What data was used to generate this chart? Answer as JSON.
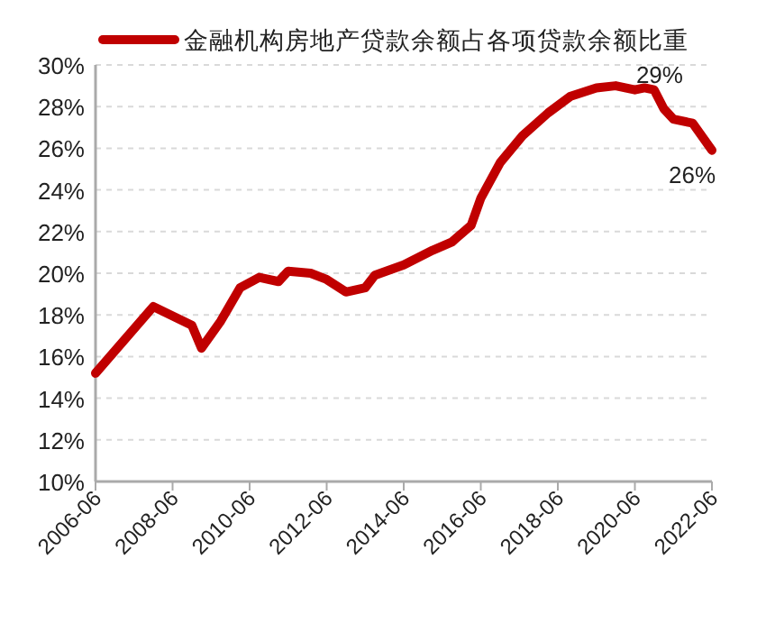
{
  "chart_data": {
    "type": "line",
    "series": [
      {
        "name": "金融机构房地产贷款余额占各项贷款余额比重",
        "color": "#c00000",
        "x": [
          "2006-06",
          "2007-12",
          "2008-12",
          "2009-03",
          "2009-09",
          "2010-03",
          "2010-09",
          "2011-03",
          "2011-06",
          "2012-01",
          "2012-06",
          "2012-12",
          "2013-06",
          "2013-09",
          "2014-06",
          "2015-03",
          "2015-09",
          "2016-03",
          "2016-06",
          "2016-12",
          "2017-07",
          "2018-03",
          "2018-10",
          "2019-06",
          "2019-12",
          "2020-06",
          "2020-09",
          "2020-12",
          "2021-03",
          "2021-06",
          "2021-12",
          "2022-06"
        ],
        "values": [
          15.2,
          18.4,
          17.5,
          16.4,
          17.7,
          19.3,
          19.8,
          19.6,
          20.1,
          20.0,
          19.7,
          19.1,
          19.3,
          19.9,
          20.4,
          21.1,
          21.5,
          22.3,
          23.6,
          25.3,
          26.6,
          27.7,
          28.5,
          28.9,
          29.0,
          28.8,
          28.9,
          28.8,
          27.9,
          27.4,
          27.2,
          25.9
        ]
      }
    ],
    "xlim": [
      "2006-06",
      "2022-06"
    ],
    "xticks": [
      "2006-06",
      "2008-06",
      "2010-06",
      "2012-06",
      "2014-06",
      "2016-06",
      "2018-06",
      "2020-06",
      "2022-06"
    ],
    "ylim": [
      10,
      30
    ],
    "yticks": [
      {
        "value": 10,
        "label": "10%"
      },
      {
        "value": 12,
        "label": "12%"
      },
      {
        "value": 14,
        "label": "14%"
      },
      {
        "value": 16,
        "label": "16%"
      },
      {
        "value": 18,
        "label": "18%"
      },
      {
        "value": 20,
        "label": "20%"
      },
      {
        "value": 22,
        "label": "22%"
      },
      {
        "value": 24,
        "label": "24%"
      },
      {
        "value": 26,
        "label": "26%"
      },
      {
        "value": 28,
        "label": "28%"
      },
      {
        "value": 30,
        "label": "30%"
      }
    ],
    "annotations": [
      {
        "text": "29%",
        "x": "2020-12",
        "y": 28.8
      },
      {
        "text": "26%",
        "x": "2022-06",
        "y": 25.9
      }
    ],
    "grid": "y",
    "legend": "top",
    "marker": "none",
    "line_style": "solid"
  }
}
